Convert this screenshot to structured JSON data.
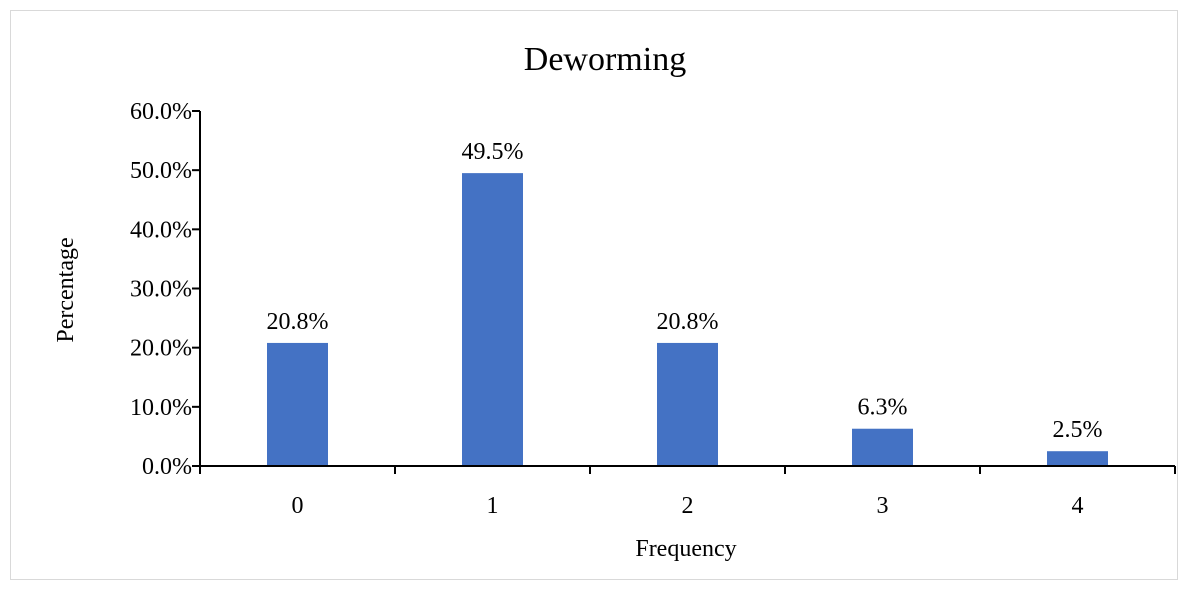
{
  "chart_data": {
    "type": "bar",
    "title": "Deworming",
    "xlabel": "Frequency",
    "ylabel": "Percentage",
    "categories": [
      "0",
      "1",
      "2",
      "3",
      "4"
    ],
    "values": [
      20.8,
      49.5,
      20.8,
      6.3,
      2.5
    ],
    "data_labels": [
      "20.8%",
      "49.5%",
      "20.8%",
      "6.3%",
      "2.5%"
    ],
    "yticks": [
      0,
      10,
      20,
      30,
      40,
      50,
      60
    ],
    "ytick_labels": [
      "0.0%",
      "10.0%",
      "20.0%",
      "30.0%",
      "40.0%",
      "50.0%",
      "60.0%"
    ],
    "ylim": [
      0,
      60
    ],
    "grid": false,
    "legend": "none",
    "bar_color": "#4472c4"
  }
}
